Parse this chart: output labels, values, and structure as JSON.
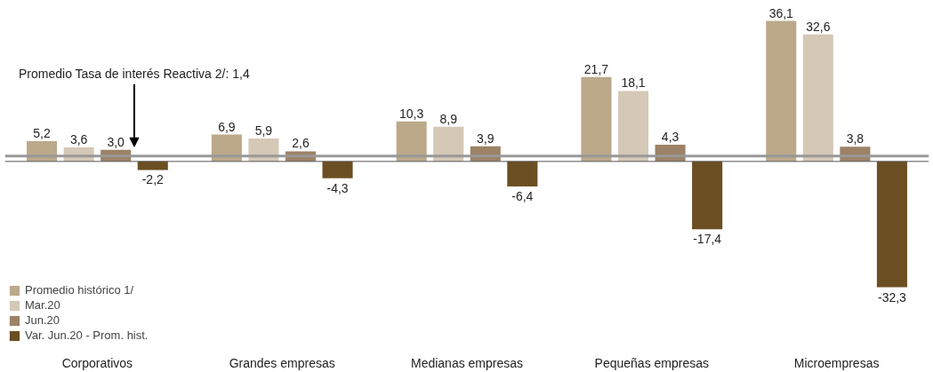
{
  "chart_data": {
    "type": "bar",
    "categories": [
      "Corporativos",
      "Grandes empresas",
      "Medianas empresas",
      "Pequeñas empresas",
      "Microempresas"
    ],
    "series": [
      {
        "name": "Promedio histórico 1/",
        "color": "#bca98a",
        "values": [
          5.2,
          6.9,
          10.3,
          21.7,
          36.1
        ],
        "value_labels": [
          "5,2",
          "6,9",
          "10,3",
          "21,7",
          "36,1"
        ]
      },
      {
        "name": "Mar.20",
        "color": "#d5c8b6",
        "values": [
          3.6,
          5.9,
          8.9,
          18.1,
          32.6
        ],
        "value_labels": [
          "3,6",
          "5,9",
          "8,9",
          "18,1",
          "32,6"
        ]
      },
      {
        "name": "Jun.20",
        "color": "#9c8266",
        "values": [
          3.0,
          2.6,
          3.9,
          4.3,
          3.8
        ],
        "value_labels": [
          "3,0",
          "2,6",
          "3,9",
          "4,3",
          "3,8"
        ]
      },
      {
        "name": "Var. Jun.20 - Prom. hist.",
        "color": "#6b4f22",
        "values": [
          -2.2,
          -4.3,
          -6.4,
          -17.4,
          -32.3
        ],
        "value_labels": [
          "-2,2",
          "-4,3",
          "-6,4",
          "-17,4",
          "-32,3"
        ]
      }
    ],
    "ref_lines": [
      {
        "axis": "y",
        "value": 1.4,
        "label": "Promedio Tasa de interés Reactiva 2/: 1,4",
        "color": "#999999"
      }
    ],
    "legend": "bottom left",
    "grid": false
  }
}
